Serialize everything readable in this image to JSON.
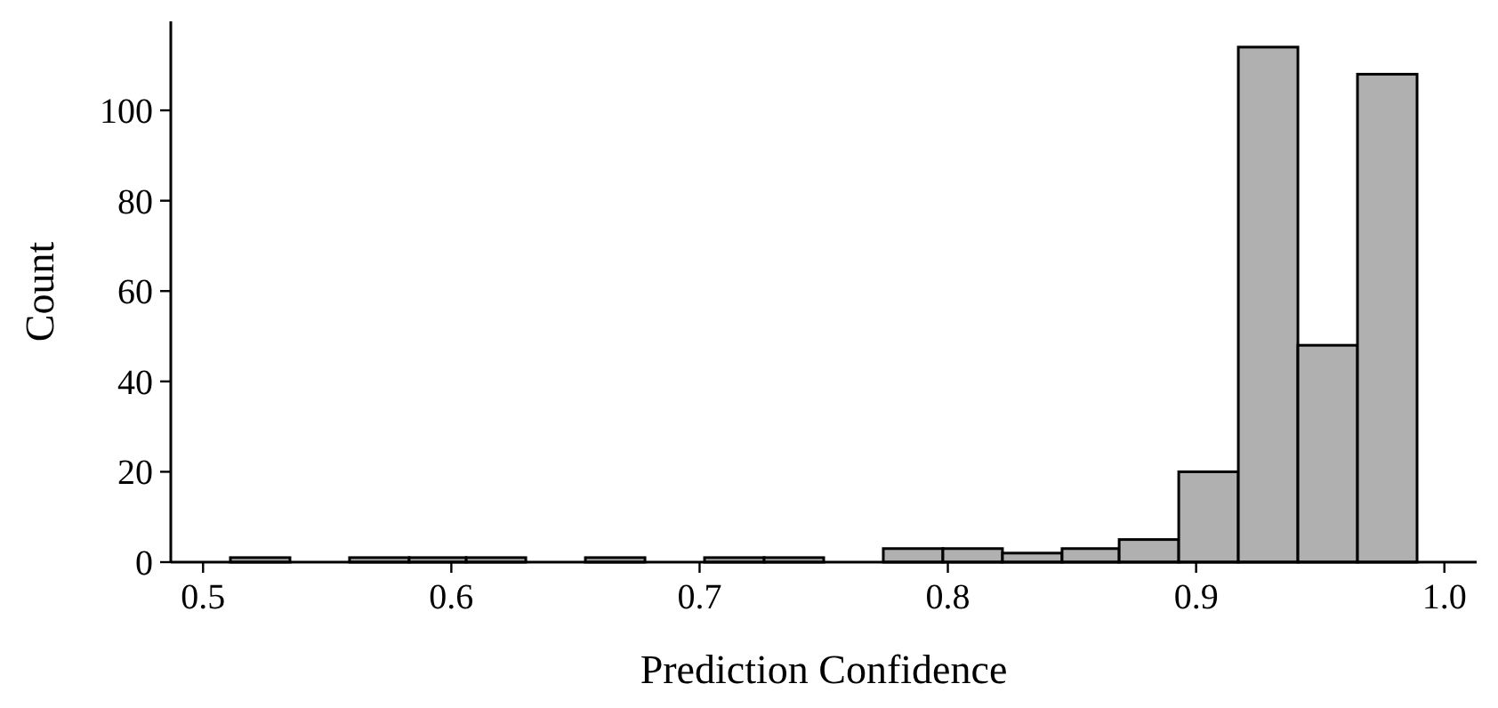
{
  "chart_data": {
    "type": "histogram",
    "xlabel": "Prediction Confidence",
    "ylabel": "Count",
    "bins": [
      0.511,
      0.535,
      0.559,
      0.583,
      0.606,
      0.63,
      0.654,
      0.678,
      0.702,
      0.726,
      0.75,
      0.774,
      0.798,
      0.822,
      0.846,
      0.869,
      0.893,
      0.917,
      0.941,
      0.965,
      0.989
    ],
    "values": [
      1,
      0,
      1,
      1,
      1,
      0,
      1,
      0,
      1,
      1,
      0,
      3,
      3,
      2,
      3,
      5,
      20,
      114,
      48,
      108
    ],
    "color": "#b0b0b0",
    "xlim": [
      0.487,
      1.013
    ],
    "ylim": [
      0,
      119.7
    ],
    "xticks": [
      0.5,
      0.6,
      0.7,
      0.8,
      0.9,
      "1.0"
    ],
    "yticks": [
      0,
      20,
      40,
      60,
      80,
      100
    ],
    "grid": false
  }
}
